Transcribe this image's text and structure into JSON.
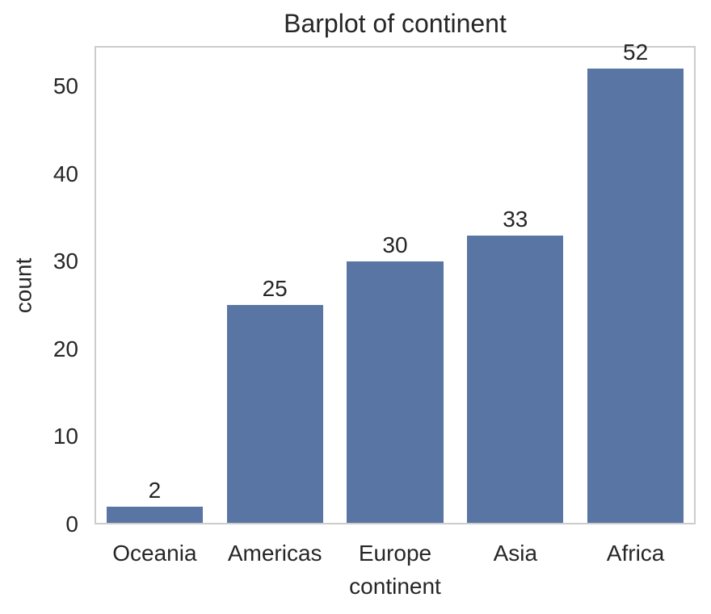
{
  "chart_data": {
    "type": "bar",
    "title": "Barplot of continent",
    "categories": [
      "Oceania",
      "Americas",
      "Europe",
      "Asia",
      "Africa"
    ],
    "values": [
      2,
      25,
      30,
      33,
      52
    ],
    "bar_labels": [
      "2",
      "25",
      "30",
      "33",
      "52"
    ],
    "xlabel": "continent",
    "ylabel": "count",
    "yticks": [
      0,
      10,
      20,
      30,
      40,
      50
    ],
    "ylim": [
      0,
      54.6
    ],
    "grid": "horizontal-only",
    "legend": "none",
    "bar_color": "#5975a4",
    "grid_color": "#cccccc",
    "text_color": "#262626",
    "background_color": "#ffffff"
  }
}
